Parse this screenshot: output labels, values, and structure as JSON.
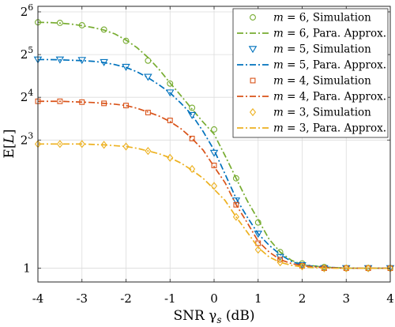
{
  "chart_data": {
    "type": "line",
    "xlabel": "SNR γ",
    "xlabel_sub": "s",
    "xlabel_unit": " (dB)",
    "ylabel_main": "E[",
    "ylabel_var": "L",
    "ylabel_close": "]",
    "xlim": [
      -4,
      4
    ],
    "ylim": [
      0.8,
      70
    ],
    "yscale": "log2",
    "grid": true,
    "legend_position": "top-right",
    "x_ticks": [
      -4,
      -3,
      -2,
      -1,
      0,
      1,
      2,
      3,
      4
    ],
    "x_tick_labels": [
      "-4",
      "-3",
      "-2",
      "-1",
      "0",
      "1",
      "2",
      "3",
      "4"
    ],
    "y_ticks": [
      {
        "value": 1,
        "base": "1",
        "exp": ""
      },
      {
        "value": 8,
        "base": "2",
        "exp": "3"
      },
      {
        "value": 16,
        "base": "2",
        "exp": "4"
      },
      {
        "value": 32,
        "base": "2",
        "exp": "5"
      },
      {
        "value": 64,
        "base": "2",
        "exp": "6"
      }
    ],
    "series": [
      {
        "m": "6",
        "color": "#77ac30",
        "marker": "circle",
        "sim_label": ", Simulation",
        "approx_label": ", Para. Approx.",
        "sim_x": [
          -4,
          -3.5,
          -3,
          -2.5,
          -2,
          -1.5,
          -1,
          -0.5,
          0,
          0.5,
          1,
          1.5,
          2,
          2.5,
          3,
          3.5,
          4
        ],
        "sim_y": [
          54,
          53.5,
          51.5,
          48,
          40,
          29,
          20,
          13.5,
          9.5,
          4.3,
          2.1,
          1.3,
          1.08,
          1.02,
          1.0,
          1.0,
          1.0
        ],
        "approx_x": [
          -4,
          -3.75,
          -3.5,
          -3.25,
          -3,
          -2.75,
          -2.5,
          -2.25,
          -2,
          -1.75,
          -1.5,
          -1.25,
          -1,
          -0.75,
          -0.5,
          -0.25,
          0,
          0.25,
          0.5,
          0.75,
          1,
          1.25,
          1.5,
          1.75,
          2,
          2.5,
          3,
          3.5,
          4
        ],
        "approx_y": [
          54,
          53.8,
          53.3,
          52.5,
          51.2,
          49.6,
          47.6,
          44.7,
          40.5,
          35.8,
          30.5,
          25.2,
          20.2,
          16.4,
          13.2,
          10.7,
          8.8,
          6.2,
          4.3,
          3.0,
          2.2,
          1.6,
          1.3,
          1.14,
          1.06,
          1.02,
          1.0,
          1.0,
          1.0
        ]
      },
      {
        "m": "5",
        "color": "#0072bd",
        "marker": "triangle-down",
        "sim_label": ", Simulation",
        "approx_label": ", Para. Approx.",
        "sim_x": [
          -4,
          -3.5,
          -3,
          -2.5,
          -2,
          -1.5,
          -1,
          -0.5,
          0,
          0.5,
          1,
          1.5,
          2,
          2.5,
          3,
          3.5,
          4
        ],
        "sim_y": [
          29.5,
          29.5,
          29.3,
          28.3,
          26.2,
          22.3,
          17.3,
          12.0,
          6.5,
          3.0,
          1.75,
          1.2,
          1.05,
          1.0,
          1.0,
          1.0,
          1.0
        ],
        "approx_x": [
          -4,
          -3.75,
          -3.5,
          -3.25,
          -3,
          -2.75,
          -2.5,
          -2.25,
          -2,
          -1.75,
          -1.5,
          -1.25,
          -1,
          -0.75,
          -0.5,
          -0.25,
          0,
          0.25,
          0.5,
          0.75,
          1,
          1.25,
          1.5,
          1.75,
          2,
          2.5,
          3,
          3.5,
          4
        ],
        "approx_y": [
          29.5,
          29.5,
          29.4,
          29.2,
          29.0,
          28.7,
          28.1,
          27.2,
          26.0,
          24.2,
          22.0,
          19.6,
          17.2,
          14.5,
          12.0,
          9.2,
          6.8,
          4.6,
          3.1,
          2.3,
          1.75,
          1.45,
          1.25,
          1.12,
          1.05,
          1.02,
          1.0,
          1.0,
          1.0
        ]
      },
      {
        "m": "4",
        "color": "#d95319",
        "marker": "square",
        "sim_label": ", Simulation",
        "approx_label": ", Para. Approx.",
        "sim_x": [
          -4,
          -3.5,
          -3,
          -2.5,
          -2,
          -1.5,
          -1,
          -0.5,
          0,
          0.5,
          1,
          1.5,
          2,
          2.5,
          3,
          3.5,
          4
        ],
        "sim_y": [
          15.0,
          15.0,
          14.8,
          14.5,
          14.0,
          12.5,
          11.0,
          8.2,
          5.3,
          2.8,
          1.5,
          1.15,
          1.04,
          1.0,
          1.0,
          1.0,
          1.0
        ],
        "approx_x": [
          -4,
          -3.75,
          -3.5,
          -3.25,
          -3,
          -2.75,
          -2.5,
          -2.25,
          -2,
          -1.75,
          -1.5,
          -1.25,
          -1,
          -0.75,
          -0.5,
          -0.25,
          0,
          0.25,
          0.5,
          0.75,
          1,
          1.25,
          1.5,
          1.75,
          2,
          2.5,
          3,
          3.5,
          4
        ],
        "approx_y": [
          15.0,
          15.0,
          15.0,
          14.9,
          14.8,
          14.7,
          14.5,
          14.3,
          14.0,
          13.4,
          12.6,
          11.8,
          10.8,
          9.6,
          8.2,
          6.8,
          5.2,
          4.0,
          2.8,
          2.1,
          1.55,
          1.3,
          1.15,
          1.08,
          1.04,
          1.01,
          1.0,
          1.0,
          1.0
        ]
      },
      {
        "m": "3",
        "color": "#edb120",
        "marker": "diamond",
        "sim_label": ", Simulation",
        "approx_label": ", Para. Approx.",
        "sim_x": [
          -4,
          -3.5,
          -3,
          -2.5,
          -2,
          -1.5,
          -1,
          -0.5,
          0,
          0.5,
          1,
          1.5,
          2,
          2.5,
          3,
          3.5,
          4
        ],
        "sim_y": [
          7.5,
          7.5,
          7.5,
          7.4,
          7.2,
          6.7,
          6.0,
          5.0,
          3.8,
          2.3,
          1.35,
          1.1,
          1.03,
          1.0,
          1.0,
          1.0,
          1.0
        ],
        "approx_x": [
          -4,
          -3.75,
          -3.5,
          -3.25,
          -3,
          -2.75,
          -2.5,
          -2.25,
          -2,
          -1.75,
          -1.5,
          -1.25,
          -1,
          -0.75,
          -0.5,
          -0.25,
          0,
          0.25,
          0.5,
          0.75,
          1,
          1.25,
          1.5,
          1.75,
          2,
          2.5,
          3,
          3.5,
          4
        ],
        "approx_y": [
          7.5,
          7.5,
          7.5,
          7.5,
          7.5,
          7.45,
          7.4,
          7.3,
          7.2,
          7.0,
          6.7,
          6.4,
          6.0,
          5.5,
          4.9,
          4.3,
          3.6,
          3.0,
          2.3,
          1.8,
          1.4,
          1.2,
          1.1,
          1.05,
          1.02,
          1.0,
          1.0,
          1.0,
          1.0
        ]
      }
    ]
  }
}
